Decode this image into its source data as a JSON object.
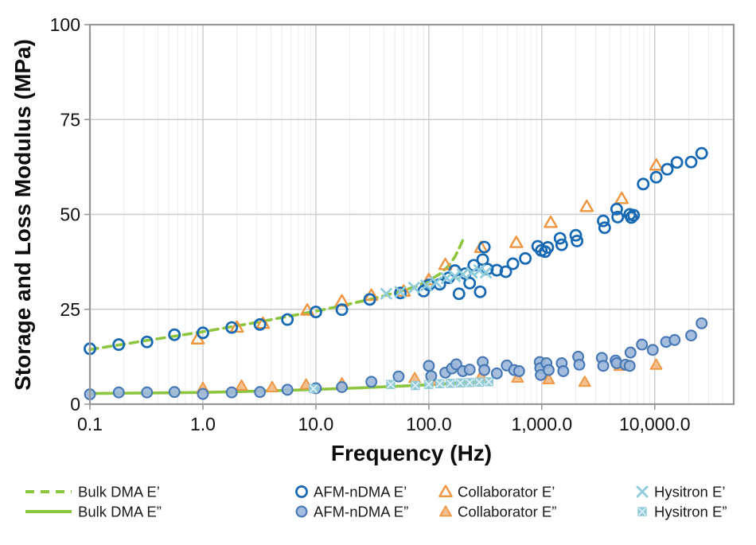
{
  "figure": {
    "background": "#ffffff"
  },
  "chart_data": {
    "type": "scatter",
    "title": "",
    "xlabel": "Frequency (Hz)",
    "ylabel": "Storage and Loss Modulus (MPa)",
    "x_scale": "log",
    "x_range": [
      0.1,
      50000
    ],
    "ylim": [
      0,
      100
    ],
    "grid": "on",
    "legend_position": "bottom",
    "x_ticks": [
      {
        "value": 0.1,
        "label": "0.1"
      },
      {
        "value": 1,
        "label": "1.0"
      },
      {
        "value": 10,
        "label": "10.0"
      },
      {
        "value": 100,
        "label": "100.0"
      },
      {
        "value": 1000,
        "label": "1,000.0"
      },
      {
        "value": 10000,
        "label": "10,000.0"
      }
    ],
    "y_ticks": [
      {
        "value": 0,
        "label": "0"
      },
      {
        "value": 25,
        "label": "25"
      },
      {
        "value": 50,
        "label": "50"
      },
      {
        "value": 75,
        "label": "75"
      },
      {
        "value": 100,
        "label": "100"
      }
    ],
    "colors": {
      "minor_grid": "#ededf0",
      "major_grid": "#cbcbcf",
      "border": "#97979b",
      "green": "#8cc63f",
      "blue_stroke": "#1769b3",
      "blue_fill": "#9db9da",
      "blue_fill_stroke": "#4677b4",
      "orange": "#f0953f",
      "orange_fill": "#f4bf8d",
      "teal": "#8ecbdb",
      "teal_fill": "#8fc9d6",
      "teal_x_light": "#dff0f5"
    },
    "series": [
      {
        "name": "Bulk DMA E’",
        "type": "line",
        "style": "dashed",
        "color": "#8cc63f",
        "points": [
          [
            0.1,
            14.4
          ],
          [
            0.18,
            15.6
          ],
          [
            0.32,
            16.8
          ],
          [
            0.56,
            17.9
          ],
          [
            1.0,
            19.1
          ],
          [
            1.8,
            20.4
          ],
          [
            3.2,
            21.7
          ],
          [
            5.6,
            23.1
          ],
          [
            10,
            24.5
          ],
          [
            18,
            26.1
          ],
          [
            32,
            27.8
          ],
          [
            56,
            29.7
          ],
          [
            80,
            31.2
          ],
          [
            100,
            32.6
          ],
          [
            125,
            34.3
          ],
          [
            150,
            36.5
          ],
          [
            170,
            38.8
          ],
          [
            185,
            41.0
          ],
          [
            200,
            43.2
          ]
        ]
      },
      {
        "name": "Bulk DMA E”",
        "type": "line",
        "style": "solid",
        "color": "#8cc63f",
        "points": [
          [
            0.1,
            2.8
          ],
          [
            0.2,
            2.9
          ],
          [
            0.5,
            3.0
          ],
          [
            1.0,
            3.1
          ],
          [
            2,
            3.3
          ],
          [
            5,
            3.6
          ],
          [
            10,
            3.9
          ],
          [
            20,
            4.2
          ],
          [
            50,
            4.7
          ],
          [
            100,
            5.1
          ],
          [
            150,
            5.4
          ],
          [
            200,
            5.6
          ],
          [
            300,
            5.9
          ]
        ]
      },
      {
        "name": "Collaborator E’",
        "type": "scatter",
        "marker": "triangle-open",
        "color": "#f0953f",
        "points": [
          [
            0.9,
            17.2
          ],
          [
            2.0,
            20.3
          ],
          [
            3.4,
            21.3
          ],
          [
            8.4,
            24.8
          ],
          [
            17,
            27.2
          ],
          [
            31,
            28.7
          ],
          [
            60,
            29.8
          ],
          [
            100,
            32.8
          ],
          [
            140,
            36.8
          ],
          [
            290,
            41.3
          ],
          [
            595,
            42.6
          ],
          [
            1200,
            47.9
          ],
          [
            2500,
            52.1
          ],
          [
            5100,
            54.2
          ],
          [
            10300,
            63.0
          ]
        ]
      },
      {
        "name": "Collaborator E”",
        "type": "scatter",
        "marker": "triangle-filled",
        "color": "#f0953f",
        "fill": "#f4bf8d",
        "points": [
          [
            1.0,
            4.3
          ],
          [
            2.2,
            4.9
          ],
          [
            4.1,
            4.5
          ],
          [
            8.2,
            5.2
          ],
          [
            17,
            5.5
          ],
          [
            75,
            6.9
          ],
          [
            105,
            6.3
          ],
          [
            290,
            7.4
          ],
          [
            610,
            7.0
          ],
          [
            1150,
            6.6
          ],
          [
            2400,
            5.9
          ],
          [
            4900,
            10.1
          ],
          [
            10300,
            10.4
          ]
        ]
      },
      {
        "name": "AFM-nDMA E’",
        "type": "scatter",
        "marker": "circle-open",
        "color": "#1769b3",
        "points": [
          [
            0.1,
            14.6
          ],
          [
            0.18,
            15.7
          ],
          [
            0.32,
            16.4
          ],
          [
            0.56,
            18.3
          ],
          [
            1.0,
            18.8
          ],
          [
            1.8,
            20.2
          ],
          [
            3.2,
            21.0
          ],
          [
            5.6,
            22.3
          ],
          [
            10,
            24.3
          ],
          [
            17,
            24.9
          ],
          [
            30,
            27.6
          ],
          [
            56,
            29.3
          ],
          [
            90,
            29.8
          ],
          [
            100,
            31.4
          ],
          [
            125,
            31.6
          ],
          [
            150,
            33.3
          ],
          [
            170,
            35.2
          ],
          [
            185,
            29.1
          ],
          [
            210,
            34.4
          ],
          [
            230,
            31.9
          ],
          [
            250,
            36.6
          ],
          [
            285,
            29.6
          ],
          [
            300,
            38.1
          ],
          [
            310,
            41.4
          ],
          [
            330,
            35.6
          ],
          [
            400,
            35.3
          ],
          [
            480,
            34.9
          ],
          [
            555,
            37.0
          ],
          [
            715,
            38.4
          ],
          [
            920,
            41.6
          ],
          [
            990,
            40.5
          ],
          [
            1070,
            40.2
          ],
          [
            1130,
            41.3
          ],
          [
            1450,
            43.7
          ],
          [
            1500,
            42.0
          ],
          [
            2000,
            44.5
          ],
          [
            2050,
            43.0
          ],
          [
            3500,
            48.3
          ],
          [
            3600,
            46.5
          ],
          [
            4600,
            51.4
          ],
          [
            4700,
            49.3
          ],
          [
            6000,
            50.0
          ],
          [
            6200,
            49.2
          ],
          [
            6500,
            49.8
          ],
          [
            7900,
            58.0
          ],
          [
            10300,
            59.8
          ],
          [
            12900,
            61.9
          ],
          [
            15700,
            63.7
          ],
          [
            21000,
            63.8
          ],
          [
            26000,
            66.1
          ]
        ]
      },
      {
        "name": "AFM-nDMA E”",
        "type": "scatter",
        "marker": "circle-filled",
        "color": "#4677b4",
        "fill": "#9db9da",
        "points": [
          [
            0.1,
            2.6
          ],
          [
            0.18,
            3.1
          ],
          [
            0.32,
            3.1
          ],
          [
            0.56,
            3.2
          ],
          [
            1.0,
            2.7
          ],
          [
            1.8,
            3.1
          ],
          [
            3.2,
            3.2
          ],
          [
            5.6,
            3.8
          ],
          [
            10,
            4.2
          ],
          [
            17,
            4.5
          ],
          [
            31,
            5.9
          ],
          [
            54,
            7.3
          ],
          [
            100,
            10.1
          ],
          [
            105,
            7.4
          ],
          [
            140,
            8.3
          ],
          [
            160,
            9.4
          ],
          [
            175,
            10.5
          ],
          [
            200,
            8.7
          ],
          [
            230,
            9.1
          ],
          [
            300,
            11.1
          ],
          [
            310,
            9.0
          ],
          [
            400,
            8.1
          ],
          [
            490,
            10.2
          ],
          [
            570,
            9.0
          ],
          [
            630,
            8.7
          ],
          [
            960,
            11.1
          ],
          [
            970,
            9.5
          ],
          [
            980,
            7.7
          ],
          [
            1100,
            10.8
          ],
          [
            1150,
            9.0
          ],
          [
            1500,
            10.8
          ],
          [
            1550,
            8.7
          ],
          [
            2100,
            12.5
          ],
          [
            2150,
            10.4
          ],
          [
            3400,
            12.2
          ],
          [
            3500,
            10.1
          ],
          [
            4500,
            11.5
          ],
          [
            4600,
            10.8
          ],
          [
            5500,
            10.4
          ],
          [
            6000,
            10.1
          ],
          [
            6100,
            13.6
          ],
          [
            7700,
            15.7
          ],
          [
            9600,
            14.3
          ],
          [
            12600,
            16.4
          ],
          [
            15000,
            16.9
          ],
          [
            21000,
            18.1
          ],
          [
            26000,
            21.3
          ]
        ]
      },
      {
        "name": "Hysitron E’",
        "type": "scatter",
        "marker": "x",
        "color": "#8ecbdb",
        "points": [
          [
            42,
            29.1
          ],
          [
            56,
            29.6
          ],
          [
            74,
            30.7
          ],
          [
            95,
            31.3
          ],
          [
            116,
            32.1
          ],
          [
            144,
            33.2
          ],
          [
            170,
            33.7
          ],
          [
            200,
            34.2
          ],
          [
            240,
            34.7
          ],
          [
            280,
            35.3
          ],
          [
            320,
            34.7
          ]
        ]
      },
      {
        "name": "Hysitron E”",
        "type": "scatter",
        "marker": "square-x",
        "color": "#8ecbdb",
        "fill": "#8fc9d6",
        "points": [
          [
            9.5,
            4.1
          ],
          [
            46,
            5.2
          ],
          [
            76,
            4.9
          ],
          [
            100,
            5.2
          ],
          [
            125,
            5.4
          ],
          [
            155,
            5.5
          ],
          [
            190,
            5.6
          ],
          [
            230,
            5.7
          ],
          [
            280,
            5.8
          ],
          [
            340,
            5.9
          ]
        ]
      }
    ],
    "legend": {
      "columns": [
        {
          "series_indexes": [
            0,
            1
          ]
        },
        {
          "series_indexes": [
            4,
            5
          ]
        },
        {
          "series_indexes": [
            2,
            3
          ]
        },
        {
          "series_indexes": [
            6,
            7
          ]
        }
      ]
    }
  }
}
